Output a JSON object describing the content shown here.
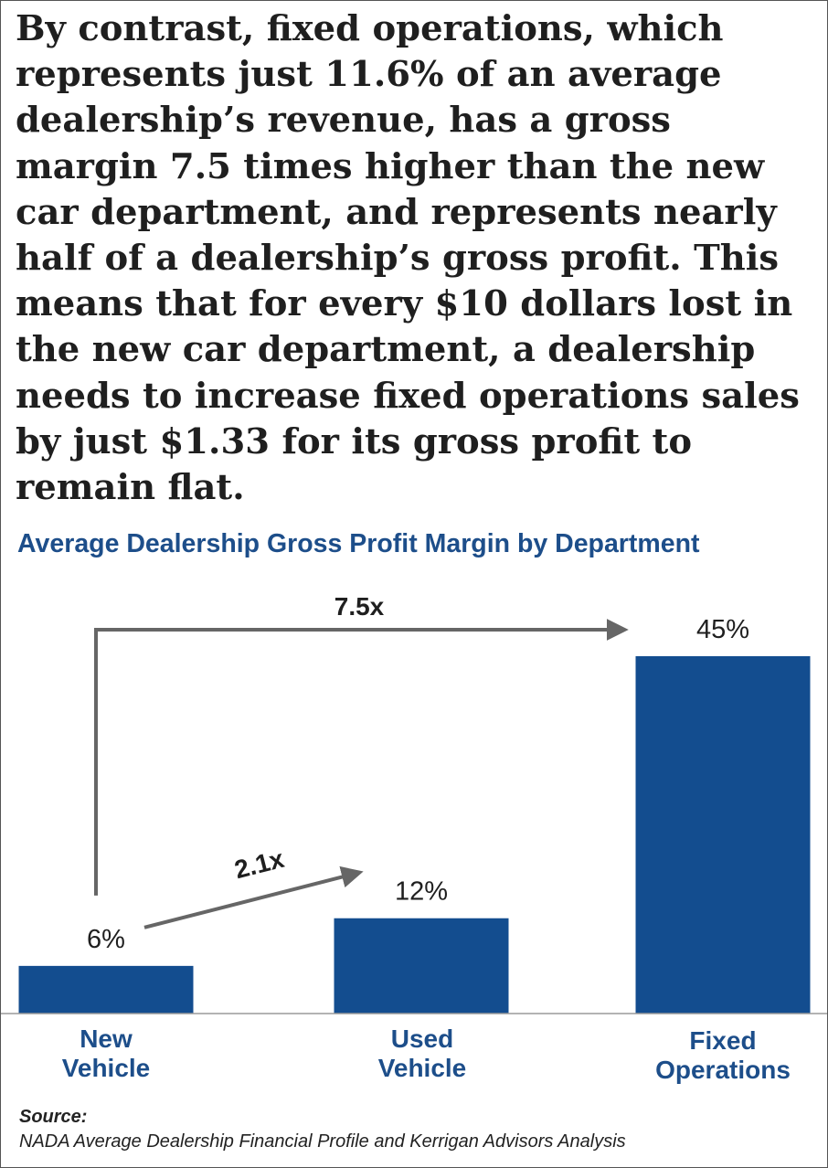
{
  "intro_text": "By contrast, fixed operations, which represents just 11.6% of an average dealership’s revenue, has a gross margin 7.5 times higher than the new car department, and represents nearly half of a dealership’s gross profit. This means that for every $10 dollars lost in the new car department, a dealership needs to increase fixed operations sales by just $1.33 for its gross profit to remain flat.",
  "colors": {
    "bar": "#134d8f",
    "label_blue": "#1d4e8a",
    "arrow": "#666666",
    "text_dark": "#1f1f1f"
  },
  "chart_data": {
    "type": "bar",
    "title": "Average Dealership Gross Profit Margin by Department",
    "categories": [
      [
        "New",
        "Vehicle"
      ],
      [
        "Used",
        "Vehicle"
      ],
      [
        "Fixed",
        "Operations"
      ]
    ],
    "values": [
      6,
      12,
      45
    ],
    "value_labels": [
      "6%",
      "12%",
      "45%"
    ],
    "ylim": [
      0,
      45
    ],
    "grid": false,
    "annotations": [
      {
        "label": "2.1x",
        "from": 0,
        "to": 1
      },
      {
        "label": "7.5x",
        "from": 0,
        "to": 2
      }
    ]
  },
  "source": {
    "heading": "Source:",
    "text": "NADA Average Dealership Financial Profile and Kerrigan Advisors Analysis"
  }
}
